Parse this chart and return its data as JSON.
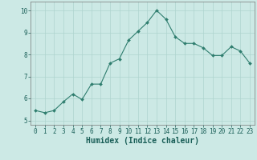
{
  "x": [
    0,
    1,
    2,
    3,
    4,
    5,
    6,
    7,
    8,
    9,
    10,
    11,
    12,
    13,
    14,
    15,
    16,
    17,
    18,
    19,
    20,
    21,
    22,
    23
  ],
  "y": [
    5.45,
    5.35,
    5.45,
    5.85,
    6.2,
    5.95,
    6.65,
    6.65,
    7.6,
    7.8,
    8.65,
    9.05,
    9.45,
    10.0,
    9.6,
    8.8,
    8.5,
    8.5,
    8.3,
    7.95,
    7.95,
    8.35,
    8.15,
    7.6
  ],
  "line_color": "#2e7d6e",
  "marker": "D",
  "marker_size": 2.0,
  "bg_color": "#cce9e5",
  "grid_color": "#aed4cf",
  "xlabel": "Humidex (Indice chaleur)",
  "xlabel_fontsize": 7,
  "xlim": [
    -0.5,
    23.5
  ],
  "ylim": [
    4.8,
    10.4
  ],
  "yticks": [
    5,
    6,
    7,
    8,
    9,
    10
  ],
  "xticks": [
    0,
    1,
    2,
    3,
    4,
    5,
    6,
    7,
    8,
    9,
    10,
    11,
    12,
    13,
    14,
    15,
    16,
    17,
    18,
    19,
    20,
    21,
    22,
    23
  ],
  "tick_fontsize": 5.5,
  "linewidth": 0.8
}
